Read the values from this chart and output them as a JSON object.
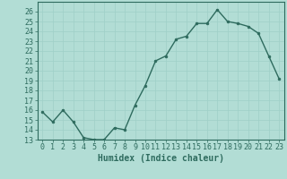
{
  "x": [
    0,
    1,
    2,
    3,
    4,
    5,
    6,
    7,
    8,
    9,
    10,
    11,
    12,
    13,
    14,
    15,
    16,
    17,
    18,
    19,
    20,
    21,
    22,
    23
  ],
  "y": [
    15.8,
    14.8,
    16.0,
    14.8,
    13.2,
    13.0,
    13.0,
    14.2,
    14.0,
    16.5,
    18.5,
    21.0,
    21.5,
    23.2,
    23.5,
    24.8,
    24.8,
    26.2,
    25.0,
    24.8,
    24.5,
    23.8,
    21.5,
    19.2
  ],
  "xlim": [
    -0.5,
    23.5
  ],
  "ylim": [
    13,
    27
  ],
  "yticks": [
    13,
    14,
    15,
    16,
    17,
    18,
    19,
    20,
    21,
    22,
    23,
    24,
    25,
    26
  ],
  "xticks": [
    0,
    1,
    2,
    3,
    4,
    5,
    6,
    7,
    8,
    9,
    10,
    11,
    12,
    13,
    14,
    15,
    16,
    17,
    18,
    19,
    20,
    21,
    22,
    23
  ],
  "xlabel": "Humidex (Indice chaleur)",
  "line_color": "#2e6b5e",
  "marker": "o",
  "marker_size": 2.0,
  "bg_color": "#b2ddd5",
  "grid_color": "#9fcfc7",
  "tick_color": "#2e6b5e",
  "xlabel_color": "#2e6b5e",
  "xlabel_fontsize": 7,
  "tick_fontsize": 6,
  "linewidth": 1.0
}
